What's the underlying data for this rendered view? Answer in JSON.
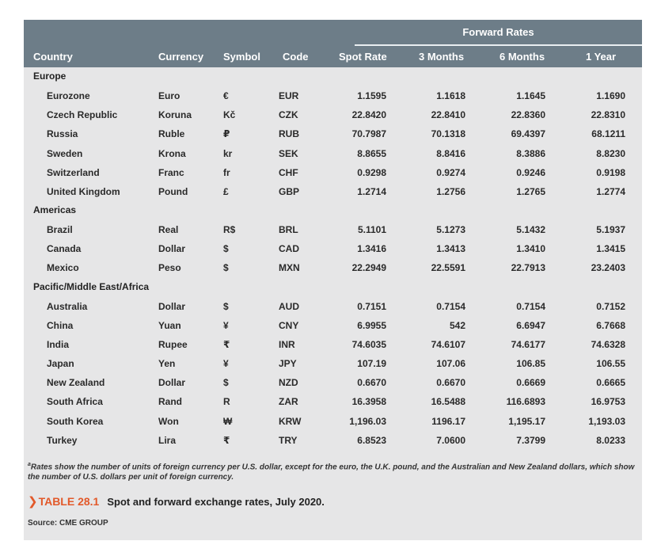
{
  "header": {
    "group_label": "Forward Rates",
    "columns": {
      "country": "Country",
      "currency": "Currency",
      "symbol": "Symbol",
      "code": "Code",
      "spot": "Spot Rate",
      "m3": "3 Months",
      "m6": "6 Months",
      "y1": "1 Year"
    }
  },
  "sections": [
    {
      "name": "Europe",
      "rows": [
        {
          "country": "Eurozone",
          "currency": "Euro",
          "symbol": "€",
          "code": "EUR",
          "spot": "1.1595",
          "m3": "1.1618",
          "m6": "1.1645",
          "y1": "1.1690"
        },
        {
          "country": "Czech Republic",
          "currency": "Koruna",
          "symbol": "Kč",
          "code": "CZK",
          "spot": "22.8420",
          "m3": "22.8410",
          "m6": "22.8360",
          "y1": "22.8310"
        },
        {
          "country": "Russia",
          "currency": "Ruble",
          "symbol": "₽",
          "code": "RUB",
          "spot": "70.7987",
          "m3": "70.1318",
          "m6": "69.4397",
          "y1": "68.1211"
        },
        {
          "country": "Sweden",
          "currency": "Krona",
          "symbol": "kr",
          "code": "SEK",
          "spot": "8.8655",
          "m3": "8.8416",
          "m6": "8.3886",
          "y1": "8.8230"
        },
        {
          "country": "Switzerland",
          "currency": "Franc",
          "symbol": "fr",
          "code": "CHF",
          "spot": "0.9298",
          "m3": "0.9274",
          "m6": "0.9246",
          "y1": "0.9198"
        },
        {
          "country": "United Kingdom",
          "currency": "Pound",
          "symbol": "£",
          "code": "GBP",
          "spot": "1.2714",
          "m3": "1.2756",
          "m6": "1.2765",
          "y1": "1.2774"
        }
      ]
    },
    {
      "name": "Americas",
      "rows": [
        {
          "country": "Brazil",
          "currency": "Real",
          "symbol": "R$",
          "code": "BRL",
          "spot": "5.1101",
          "m3": "5.1273",
          "m6": "5.1432",
          "y1": "5.1937"
        },
        {
          "country": "Canada",
          "currency": "Dollar",
          "symbol": "$",
          "code": "CAD",
          "spot": "1.3416",
          "m3": "1.3413",
          "m6": "1.3410",
          "y1": "1.3415"
        },
        {
          "country": "Mexico",
          "currency": "Peso",
          "symbol": "$",
          "code": "MXN",
          "spot": "22.2949",
          "m3": "22.5591",
          "m6": "22.7913",
          "y1": "23.2403"
        }
      ]
    },
    {
      "name": "Pacific/Middle East/Africa",
      "rows": [
        {
          "country": "Australia",
          "currency": "Dollar",
          "symbol": "$",
          "code": "AUD",
          "spot": "0.7151",
          "m3": "0.7154",
          "m6": "0.7154",
          "y1": "0.7152"
        },
        {
          "country": "China",
          "currency": "Yuan",
          "symbol": "¥",
          "code": "CNY",
          "spot": "6.9955",
          "m3": "542",
          "m6": "6.6947",
          "y1": "6.7668"
        },
        {
          "country": "India",
          "currency": "Rupee",
          "symbol": "₹",
          "code": "INR",
          "spot": "74.6035",
          "m3": "74.6107",
          "m6": "74.6177",
          "y1": "74.6328"
        },
        {
          "country": "Japan",
          "currency": "Yen",
          "symbol": "¥",
          "code": "JPY",
          "spot": "107.19",
          "m3": "107.06",
          "m6": "106.85",
          "y1": "106.55"
        },
        {
          "country": "New Zealand",
          "currency": "Dollar",
          "symbol": "$",
          "code": "NZD",
          "spot": "0.6670",
          "m3": "0.6670",
          "m6": "0.6669",
          "y1": "0.6665"
        },
        {
          "country": "South Africa",
          "currency": "Rand",
          "symbol": "R",
          "code": "ZAR",
          "spot": "16.3958",
          "m3": "16.5488",
          "m6": "116.6893",
          "y1": "16.9753"
        },
        {
          "country": "South Korea",
          "currency": "Won",
          "symbol": "₩",
          "code": "KRW",
          "spot": "1,196.03",
          "m3": "1196.17",
          "m6": "1,195.17",
          "y1": "1,193.03"
        },
        {
          "country": "Turkey",
          "currency": "Lira",
          "symbol": "₹",
          "code": "TRY",
          "spot": "6.8523",
          "m3": "7.0600",
          "m6": "7.3799",
          "y1": "8.0233"
        }
      ]
    }
  ],
  "footnote": {
    "marker": "a",
    "text": "Rates show the number of units of foreign currency per U.S. dollar, except for the euro, the U.K. pound, and the Australian and New Zealand dollars, which show the number of U.S. dollars per unit of foreign currency."
  },
  "caption": {
    "chevron": "❯",
    "label": "TABLE 28.1",
    "title": "Spot and forward exchange rates, July 2020."
  },
  "source": "Source: CME GROUP",
  "colors": {
    "header_bg": "#6d7d88",
    "panel_bg": "#e6e6e7",
    "accent": "#e2592a"
  }
}
